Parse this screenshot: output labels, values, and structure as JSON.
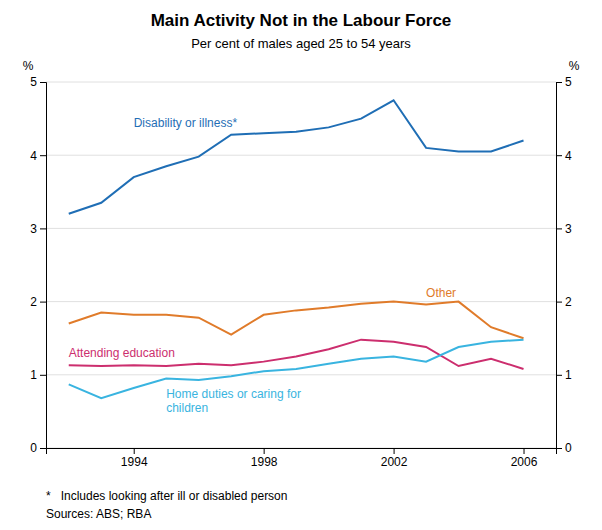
{
  "chart_data": {
    "type": "line",
    "title": "Main Activity Not in the Labour Force",
    "subtitle": "Per cent of males aged 25 to 54 years",
    "ylabel": "%",
    "y2label": "%",
    "footnote": "*   Includes looking after ill or disabled person",
    "source": "Sources: ABS; RBA",
    "x": [
      1992,
      1993,
      1994,
      1995,
      1996,
      1997,
      1998,
      1999,
      2000,
      2001,
      2002,
      2003,
      2004,
      2005,
      2006
    ],
    "series": [
      {
        "name": "Disability or illness*",
        "color": "#1f6eb5",
        "values": [
          3.2,
          3.35,
          3.7,
          3.85,
          3.98,
          4.28,
          4.3,
          4.32,
          4.38,
          4.5,
          4.75,
          4.1,
          4.05,
          4.05,
          4.2
        ]
      },
      {
        "name": "Other",
        "color": "#e07b2a",
        "values": [
          1.7,
          1.85,
          1.82,
          1.82,
          1.78,
          1.55,
          1.82,
          1.88,
          1.92,
          1.97,
          2.0,
          1.96,
          2.0,
          1.65,
          1.5
        ]
      },
      {
        "name": "Attending education",
        "color": "#cc2e6e",
        "values": [
          1.13,
          1.12,
          1.13,
          1.12,
          1.15,
          1.13,
          1.18,
          1.25,
          1.35,
          1.48,
          1.45,
          1.38,
          1.12,
          1.22,
          1.08
        ]
      },
      {
        "name": "Home duties or caring for\nchildren",
        "color": "#39b4e0",
        "values": [
          0.87,
          0.68,
          0.82,
          0.95,
          0.93,
          0.98,
          1.05,
          1.08,
          1.15,
          1.22,
          1.25,
          1.18,
          1.38,
          1.45,
          1.48
        ]
      }
    ],
    "xlim": [
      1991.3,
      2007.0
    ],
    "xticks": [
      1994,
      1998,
      2002,
      2006
    ],
    "ylim": [
      0,
      5
    ],
    "yticks": [
      0,
      1,
      2,
      3,
      4,
      5
    ],
    "y2lim": [
      0,
      5
    ],
    "y2ticks": [
      0,
      1,
      2,
      3,
      4,
      5
    ],
    "grid": "y"
  }
}
